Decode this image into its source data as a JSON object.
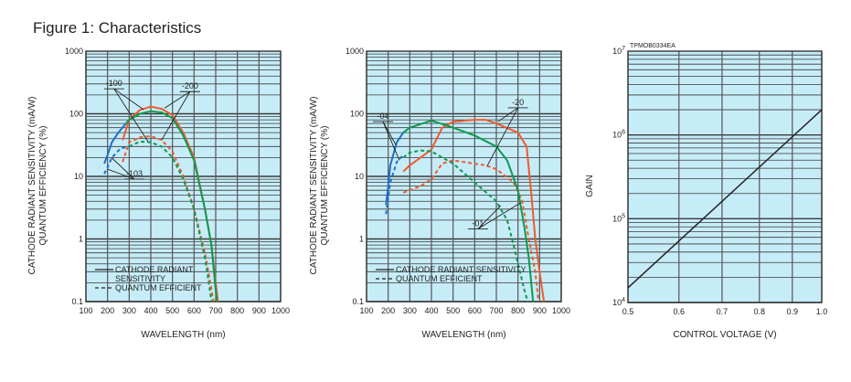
{
  "title": "Figure 1: Characteristics",
  "colors": {
    "background": "#c6ecf8",
    "grid": "#3a3a3a",
    "blue": "#1f6fc6",
    "green": "#0d9a50",
    "red": "#f05a2c",
    "line": "#222222"
  },
  "chart_data": [
    {
      "type": "line",
      "xlabel": "WAVELENGTH (nm)",
      "ylabel": [
        "CATHODE RADIANT SENSITIVITY (mA/W)",
        "QUANTUM EFFICIENCY (%)"
      ],
      "xscale": "linear",
      "yscale": "log",
      "xlim": [
        100,
        1000
      ],
      "ylim": [
        0.1,
        1000
      ],
      "xticks": [
        100,
        200,
        300,
        400,
        500,
        600,
        700,
        800,
        900,
        1000
      ],
      "xtick_labels": [
        "100",
        "200",
        "300",
        "400",
        "500",
        "600",
        "700",
        "800",
        "900",
        "1000"
      ],
      "yticks": [
        0.1,
        1,
        10,
        100,
        1000
      ],
      "ytick_labels": [
        "0.1",
        "1",
        "10",
        "100",
        "1000"
      ],
      "grid": true,
      "legend": {
        "placement": "bottom-left",
        "entries": [
          {
            "style": "solid",
            "label": [
              "CATHODE RADIANT",
              "SENSITIVITY"
            ]
          },
          {
            "style": "dashed",
            "label": [
              "QUANTUM EFFICIENT"
            ]
          }
        ]
      },
      "series": [
        {
          "name": "-200 cathode radiant sensitivity",
          "color": "red",
          "style": "solid",
          "x": [
            270,
            300,
            350,
            400,
            450,
            500,
            550,
            600,
            650,
            680,
            700,
            710
          ],
          "y": [
            38,
            80,
            115,
            130,
            120,
            95,
            50,
            20,
            3,
            0.8,
            0.2,
            0.1
          ]
        },
        {
          "name": "-200 quantum efficiency",
          "color": "red",
          "style": "dashed",
          "x": [
            270,
            300,
            350,
            400,
            450,
            500,
            550,
            600,
            650,
            675,
            690
          ],
          "y": [
            17,
            35,
            42,
            44,
            38,
            25,
            10,
            3,
            0.6,
            0.2,
            0.1
          ]
        },
        {
          "name": "-100 cathode radiant sensitivity",
          "color": "green",
          "style": "solid",
          "x": [
            285,
            300,
            350,
            400,
            450,
            500,
            550,
            600,
            650,
            680,
            700,
            705
          ],
          "y": [
            70,
            80,
            100,
            110,
            105,
            85,
            45,
            18,
            3,
            0.8,
            0.15,
            0.1
          ]
        },
        {
          "name": "-100 quantum efficiency",
          "color": "green",
          "style": "dashed",
          "x": [
            300,
            350,
            400,
            450,
            500,
            550,
            600,
            650,
            670,
            680
          ],
          "y": [
            30,
            36,
            35,
            30,
            20,
            9,
            3,
            0.5,
            0.18,
            0.1
          ]
        },
        {
          "name": "-103 cathode radiant sensitivity",
          "color": "blue",
          "style": "solid",
          "x": [
            185,
            200,
            220,
            250,
            285
          ],
          "y": [
            16,
            22,
            35,
            50,
            70
          ]
        },
        {
          "name": "-103 quantum efficiency",
          "color": "blue",
          "style": "dashed",
          "x": [
            185,
            200,
            220,
            260,
            300
          ],
          "y": [
            11,
            14,
            20,
            28,
            30
          ]
        }
      ],
      "annotations": [
        {
          "text": "-100",
          "at": [
            230,
            277
          ],
          "targets": [
            [
              366,
              117
            ],
            [
              387,
              36
            ]
          ]
        },
        {
          "text": "-200",
          "at": [
            581,
            250
          ],
          "targets": [
            [
              463,
              123
            ],
            [
              450,
              38
            ]
          ]
        },
        {
          "text": "-103",
          "at": [
            324,
            10
          ],
          "targets": [
            [
              218,
              20
            ],
            [
              201,
              13
            ]
          ]
        }
      ]
    },
    {
      "type": "line",
      "xlabel": "WAVELENGTH (nm)",
      "ylabel": [
        "CATHODE RADIANT SENSITIVITY (mA/W)",
        "QUANTUM EFFICIENCY (%)"
      ],
      "xscale": "linear",
      "yscale": "log",
      "xlim": [
        100,
        1000
      ],
      "ylim": [
        0.1,
        1000
      ],
      "xticks": [
        100,
        200,
        300,
        400,
        500,
        600,
        700,
        800,
        900,
        1000
      ],
      "xtick_labels": [
        "100",
        "200",
        "300",
        "400",
        "500",
        "600",
        "700",
        "800",
        "900",
        "1000"
      ],
      "yticks": [
        0.1,
        1,
        10,
        100,
        1000
      ],
      "ytick_labels": [
        "0.1",
        "1",
        "10",
        "100",
        "1000"
      ],
      "grid": true,
      "legend": {
        "placement": "bottom-left",
        "entries": [
          {
            "style": "solid",
            "label": [
              "CATHODE RADIANT SENSITIVITY"
            ]
          },
          {
            "style": "dashed",
            "label": [
              "QUANTUM EFFICIENT"
            ]
          }
        ]
      },
      "series": [
        {
          "name": "-20 cathode radiant sensitivity",
          "color": "red",
          "style": "solid",
          "x": [
            270,
            300,
            350,
            400,
            450,
            500,
            600,
            650,
            700,
            800,
            840,
            860,
            880,
            900,
            920
          ],
          "y": [
            12,
            15,
            20,
            27,
            60,
            75,
            80,
            80,
            70,
            50,
            30,
            6,
            1,
            0.3,
            0.1
          ]
        },
        {
          "name": "-20 quantum efficiency",
          "color": "red",
          "style": "dashed",
          "x": [
            270,
            350,
            400,
            450,
            500,
            650,
            700,
            780,
            820,
            850,
            880,
            895
          ],
          "y": [
            5.5,
            7,
            9,
            16,
            18,
            15,
            13,
            8,
            4,
            1,
            0.3,
            0.1
          ]
        },
        {
          "name": "-01 cathode radiant sensitivity",
          "color": "green",
          "style": "solid",
          "x": [
            270,
            300,
            400,
            500,
            600,
            700,
            750,
            800,
            830,
            850,
            870
          ],
          "y": [
            50,
            60,
            78,
            60,
            45,
            30,
            18,
            6,
            1.5,
            0.5,
            0.1
          ]
        },
        {
          "name": "-01 quantum efficiency",
          "color": "green",
          "style": "dashed",
          "x": [
            270,
            300,
            350,
            400,
            500,
            600,
            700,
            750,
            780,
            800,
            830,
            845
          ],
          "y": [
            20,
            24,
            26,
            25,
            16,
            8,
            4,
            2,
            0.8,
            0.4,
            0.15,
            0.1
          ]
        },
        {
          "name": "-04 cathode radiant sensitivity",
          "color": "blue",
          "style": "solid",
          "x": [
            190,
            200,
            210,
            240,
            270
          ],
          "y": [
            3.5,
            7,
            15,
            35,
            50
          ]
        },
        {
          "name": "-04 quantum efficiency",
          "color": "blue",
          "style": "dashed",
          "x": [
            190,
            200,
            210,
            240,
            270
          ],
          "y": [
            2.5,
            4.5,
            8,
            17,
            22
          ]
        }
      ],
      "annotations": [
        {
          "text": "-04",
          "at": [
            176,
            83
          ],
          "targets": [
            [
              235,
              32
            ],
            [
              252,
              18
            ]
          ]
        },
        {
          "text": "-20",
          "at": [
            800,
            138
          ],
          "targets": [
            [
              708,
              75
            ],
            [
              657,
              14.5
            ]
          ]
        },
        {
          "text": "-01",
          "at": [
            615,
            1.6
          ],
          "targets": [
            [
              720,
              3.4
            ],
            [
              813,
              3.8
            ]
          ]
        }
      ]
    },
    {
      "type": "line",
      "code": "TPMOB0334EA",
      "xlabel": "CONTROL VOLTAGE (V)",
      "ylabel": [
        "GAIN"
      ],
      "xscale": "log",
      "yscale": "log",
      "xlim": [
        0.5,
        1.0
      ],
      "ylim": [
        10000,
        10000000
      ],
      "xticks": [
        0.5,
        0.6,
        0.7,
        0.8,
        0.9,
        1.0
      ],
      "xtick_labels": [
        "0.5",
        "0.6",
        "0.7",
        "0.8",
        "0.9",
        "1.0"
      ],
      "yticks": [
        10000,
        100000,
        1000000,
        10000000
      ],
      "ytick_labels": [
        {
          "base": "10",
          "exp": "4"
        },
        {
          "base": "10",
          "exp": "5"
        },
        {
          "base": "10",
          "exp": "6"
        },
        {
          "base": "10",
          "exp": "7"
        }
      ],
      "grid": true,
      "series": [
        {
          "name": "gain",
          "color": "line",
          "style": "solid",
          "x": [
            0.5,
            1.0
          ],
          "y": [
            15000,
            2000000
          ]
        }
      ],
      "annotations": []
    }
  ]
}
